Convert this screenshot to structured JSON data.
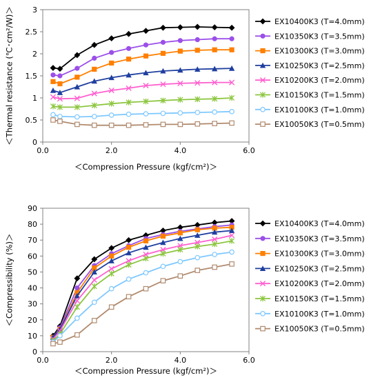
{
  "chart_data": [
    {
      "type": "line",
      "ylabel": "＜Thermal resistance (℃･cm²/W)＞",
      "xlabel": "＜Compression Pressure (kgf/cm²)＞",
      "xlim": [
        0,
        6
      ],
      "ylim": [
        0,
        3
      ],
      "x_ticks": [
        "0.0",
        "2.0",
        "4.0",
        "6.0"
      ],
      "y_ticks": [
        "0",
        "0.5",
        "1",
        "1.5",
        "2",
        "2.5",
        "3"
      ],
      "grid": "off",
      "legend_position": "right",
      "x": [
        0.3,
        0.5,
        1.0,
        1.5,
        2.0,
        2.5,
        3.0,
        3.5,
        4.0,
        4.5,
        5.0,
        5.5
      ],
      "series": [
        {
          "name": "EX10400K3 (T=4.0mm)",
          "color": "#000000",
          "marker": "diamond",
          "values": [
            1.68,
            1.66,
            1.97,
            2.2,
            2.35,
            2.45,
            2.52,
            2.59,
            2.6,
            2.61,
            2.6,
            2.59
          ]
        },
        {
          "name": "EX10350K3 (T=3.5mm)",
          "color": "#9B4FE8",
          "marker": "circle",
          "values": [
            1.52,
            1.5,
            1.67,
            1.9,
            2.03,
            2.12,
            2.2,
            2.26,
            2.3,
            2.32,
            2.34,
            2.34
          ]
        },
        {
          "name": "EX10300K3 (T=3.0mm)",
          "color": "#FF7F00",
          "marker": "square",
          "values": [
            1.37,
            1.32,
            1.47,
            1.65,
            1.79,
            1.88,
            1.95,
            2.01,
            2.06,
            2.08,
            2.09,
            2.09
          ]
        },
        {
          "name": "EX10250K3 (T=2.5mm)",
          "color": "#1F3F9F",
          "marker": "triangle",
          "values": [
            1.17,
            1.12,
            1.25,
            1.38,
            1.46,
            1.52,
            1.57,
            1.61,
            1.63,
            1.65,
            1.66,
            1.67
          ]
        },
        {
          "name": "EX10200K3 (T=2.0mm)",
          "color": "#FF5FCF",
          "marker": "x",
          "values": [
            1.02,
            0.98,
            0.99,
            1.1,
            1.17,
            1.22,
            1.28,
            1.31,
            1.33,
            1.34,
            1.35,
            1.35
          ]
        },
        {
          "name": "EX10150K3 (T=1.5mm)",
          "color": "#8CC63F",
          "marker": "star",
          "values": [
            0.81,
            0.79,
            0.79,
            0.83,
            0.87,
            0.9,
            0.92,
            0.94,
            0.96,
            0.97,
            0.98,
            1.0
          ]
        },
        {
          "name": "EX10100K3 (T=1.0mm)",
          "color": "#7EC8FF",
          "marker": "open-circle",
          "values": [
            0.62,
            0.58,
            0.57,
            0.58,
            0.61,
            0.63,
            0.64,
            0.65,
            0.66,
            0.67,
            0.68,
            0.69
          ]
        },
        {
          "name": "EX10050K3 (T=0.5mm)",
          "color": "#B08A6E",
          "marker": "open-square",
          "values": [
            0.5,
            0.47,
            0.4,
            0.38,
            0.38,
            0.38,
            0.39,
            0.4,
            0.4,
            0.41,
            0.42,
            0.43
          ]
        }
      ]
    },
    {
      "type": "line",
      "ylabel": "＜Compressibility (%)＞",
      "xlabel": "＜Compression Pressure (kgf/cm²)＞",
      "xlim": [
        0,
        6
      ],
      "ylim": [
        0,
        90
      ],
      "x_ticks": [
        "0.0",
        "2.0",
        "4.0",
        "6.0"
      ],
      "y_ticks": [
        "0",
        "10",
        "20",
        "30",
        "40",
        "50",
        "60",
        "70",
        "80",
        "90"
      ],
      "grid": "off",
      "legend_position": "right",
      "x": [
        0.3,
        0.5,
        1.0,
        1.5,
        2.0,
        2.5,
        3.0,
        3.5,
        4.0,
        4.5,
        5.0,
        5.5
      ],
      "series": [
        {
          "name": "EX10400K3 (T=4.0mm)",
          "color": "#000000",
          "marker": "diamond",
          "values": [
            10,
            16,
            46,
            58,
            65,
            70,
            73,
            76,
            78,
            79.5,
            81,
            82
          ]
        },
        {
          "name": "EX10350K3 (T=3.5mm)",
          "color": "#9B4FE8",
          "marker": "circle",
          "values": [
            9,
            15,
            40,
            54,
            61.5,
            66.5,
            71,
            73.5,
            75.5,
            77,
            78.5,
            79.5
          ]
        },
        {
          "name": "EX10300K3 (T=3.0mm)",
          "color": "#FF7F00",
          "marker": "square",
          "values": [
            9,
            14,
            37,
            52.5,
            60,
            65.5,
            69.5,
            72.5,
            74.5,
            76.5,
            77.5,
            78
          ]
        },
        {
          "name": "EX10250K3 (T=2.5mm)",
          "color": "#1F3F9F",
          "marker": "triangle",
          "values": [
            9,
            14,
            35,
            50,
            57,
            62,
            65.5,
            68.5,
            71,
            73,
            75,
            76
          ]
        },
        {
          "name": "EX10200K3 (T=2.0mm)",
          "color": "#FF5FCF",
          "marker": "x",
          "values": [
            8,
            13,
            32,
            45,
            52,
            57,
            61,
            64,
            66.5,
            68.5,
            70.5,
            73
          ]
        },
        {
          "name": "EX10150K3 (T=1.5mm)",
          "color": "#8CC63F",
          "marker": "star",
          "values": [
            7,
            11,
            28,
            41,
            49,
            54.5,
            58.5,
            61.5,
            64,
            66,
            67.5,
            69.5
          ]
        },
        {
          "name": "EX10100K3 (T=1.0mm)",
          "color": "#7EC8FF",
          "marker": "open-circle",
          "values": [
            6,
            10,
            21,
            31,
            39.5,
            45.5,
            49.5,
            53.5,
            56.5,
            59,
            61,
            62.5
          ]
        },
        {
          "name": "EX10050K3 (T=0.5mm)",
          "color": "#B08A6E",
          "marker": "open-square",
          "values": [
            5,
            6,
            10.5,
            19.5,
            28,
            34.5,
            39.5,
            44.5,
            47.5,
            51,
            53,
            55
          ]
        }
      ]
    }
  ]
}
